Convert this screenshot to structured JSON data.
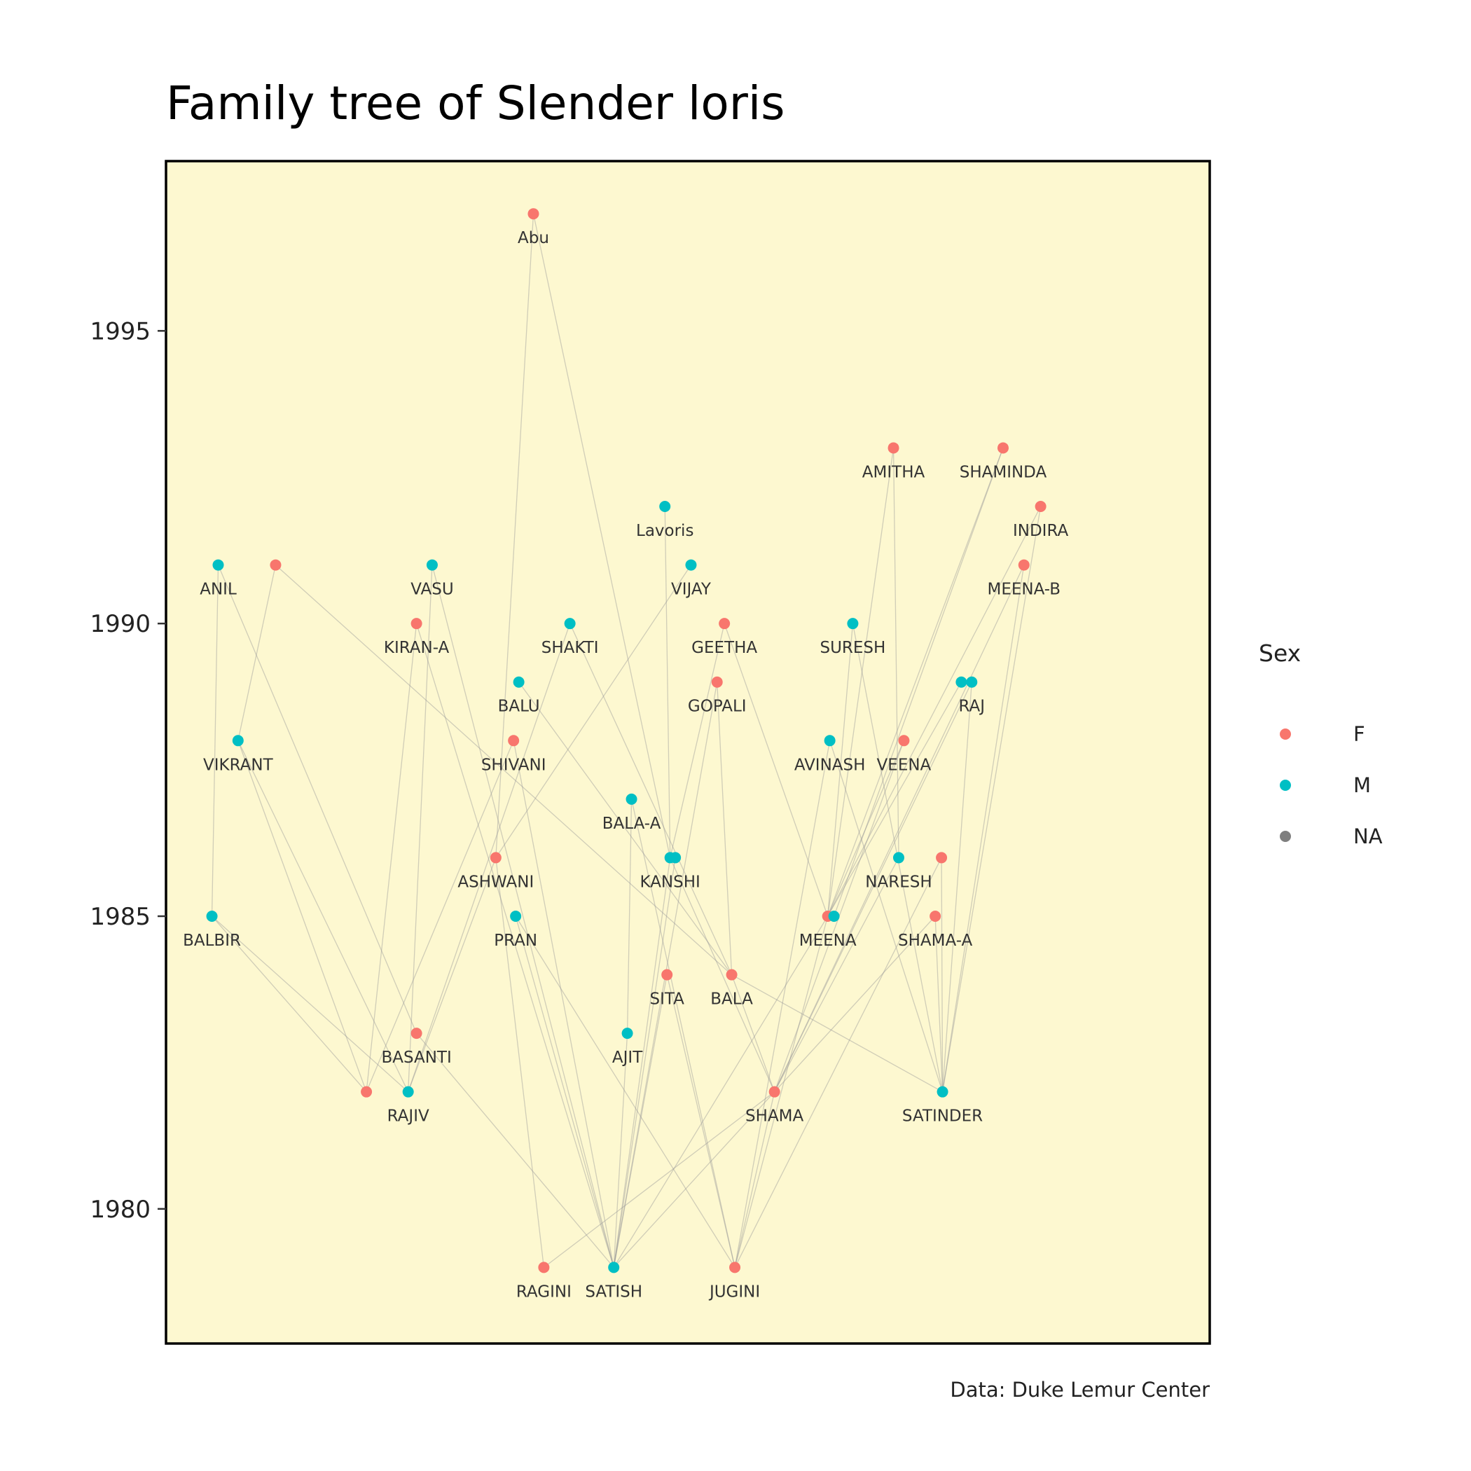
{
  "colors": {
    "panel_bg": "#fdf8d0",
    "panel_border": "#000000",
    "female": "#f8766d",
    "male": "#00bfc4",
    "na": "#7f7f7f",
    "edge": "#9a9a9a"
  },
  "chart_data": {
    "type": "scatter",
    "title": "Family tree of Slender loris",
    "caption": "Data: Duke Lemur Center",
    "xlabel": "",
    "ylabel": "",
    "xlim": [
      0,
      100
    ],
    "ylim": [
      1977.7,
      1997.9
    ],
    "y_ticks": [
      1980,
      1985,
      1990,
      1995
    ],
    "grid": false,
    "legend": {
      "title": "Sex",
      "placement": "right",
      "entries": [
        {
          "label": "F",
          "color": "#f8766d"
        },
        {
          "label": "M",
          "color": "#00bfc4"
        },
        {
          "label": "NA",
          "color": "#7f7f7f"
        }
      ]
    },
    "nodes": [
      {
        "id": "abu",
        "label": "Abu",
        "sex": "F",
        "x": 35.2,
        "y": 1997
      },
      {
        "id": "amitha",
        "label": "AMITHA",
        "sex": "F",
        "x": 69.7,
        "y": 1993
      },
      {
        "id": "shaminda",
        "label": "SHAMINDA",
        "sex": "F",
        "x": 80.2,
        "y": 1993
      },
      {
        "id": "lavoris",
        "label": "Lavoris",
        "sex": "M",
        "x": 47.8,
        "y": 1992
      },
      {
        "id": "indira",
        "label": "INDIRA",
        "sex": "F",
        "x": 83.8,
        "y": 1992
      },
      {
        "id": "anil",
        "label": "ANIL",
        "sex": "M",
        "x": 5.0,
        "y": 1991
      },
      {
        "id": "f1991a",
        "label": "",
        "sex": "F",
        "x": 10.5,
        "y": 1991
      },
      {
        "id": "vasu",
        "label": "VASU",
        "sex": "M",
        "x": 25.5,
        "y": 1991
      },
      {
        "id": "vijay",
        "label": "VIJAY",
        "sex": "M",
        "x": 50.3,
        "y": 1991
      },
      {
        "id": "meenab",
        "label": "MEENA-B",
        "sex": "F",
        "x": 82.2,
        "y": 1991
      },
      {
        "id": "kirana",
        "label": "KIRAN-A",
        "sex": "F",
        "x": 24.0,
        "y": 1990
      },
      {
        "id": "shakti",
        "label": "SHAKTI",
        "sex": "M",
        "x": 38.7,
        "y": 1990
      },
      {
        "id": "geetha",
        "label": "GEETHA",
        "sex": "F",
        "x": 53.5,
        "y": 1990
      },
      {
        "id": "suresh",
        "label": "SURESH",
        "sex": "M",
        "x": 65.8,
        "y": 1990
      },
      {
        "id": "balu",
        "label": "BALU",
        "sex": "M",
        "x": 33.8,
        "y": 1989
      },
      {
        "id": "gopali",
        "label": "GOPALI",
        "sex": "F",
        "x": 52.8,
        "y": 1989
      },
      {
        "id": "raj",
        "label": "RAJ",
        "sex": "M",
        "x": 77.2,
        "y": 1989
      },
      {
        "id": "m1989b",
        "label": "",
        "sex": "M",
        "x": 76.2,
        "y": 1989
      },
      {
        "id": "vikrant",
        "label": "VIKRANT",
        "sex": "M",
        "x": 6.9,
        "y": 1988
      },
      {
        "id": "shivani",
        "label": "SHIVANI",
        "sex": "F",
        "x": 33.3,
        "y": 1988
      },
      {
        "id": "avinash",
        "label": "AVINASH",
        "sex": "M",
        "x": 63.6,
        "y": 1988
      },
      {
        "id": "veena",
        "label": "VEENA",
        "sex": "F",
        "x": 70.7,
        "y": 1988
      },
      {
        "id": "balaa",
        "label": "BALA-A",
        "sex": "M",
        "x": 44.6,
        "y": 1987
      },
      {
        "id": "ashwani",
        "label": "ASHWANI",
        "sex": "F",
        "x": 31.6,
        "y": 1986
      },
      {
        "id": "kanshi",
        "label": "KANSHI",
        "sex": "M",
        "x": 48.3,
        "y": 1986
      },
      {
        "id": "m1986b",
        "label": "",
        "sex": "M",
        "x": 48.8,
        "y": 1986
      },
      {
        "id": "naresh",
        "label": "NARESH",
        "sex": "M",
        "x": 70.2,
        "y": 1986
      },
      {
        "id": "f1986b",
        "label": "",
        "sex": "F",
        "x": 74.3,
        "y": 1986
      },
      {
        "id": "balbir",
        "label": "BALBIR",
        "sex": "M",
        "x": 4.4,
        "y": 1985
      },
      {
        "id": "pran",
        "label": "PRAN",
        "sex": "M",
        "x": 33.5,
        "y": 1985
      },
      {
        "id": "meena",
        "label": "MEENA",
        "sex": "F",
        "x": 63.4,
        "y": 1985
      },
      {
        "id": "m1985b",
        "label": "",
        "sex": "M",
        "x": 64.0,
        "y": 1985
      },
      {
        "id": "shamaa",
        "label": "SHAMA-A",
        "sex": "F",
        "x": 73.7,
        "y": 1985
      },
      {
        "id": "sita",
        "label": "SITA",
        "sex": "F",
        "x": 48.0,
        "y": 1984
      },
      {
        "id": "bala",
        "label": "BALA",
        "sex": "F",
        "x": 54.2,
        "y": 1984
      },
      {
        "id": "basanti",
        "label": "BASANTI",
        "sex": "F",
        "x": 24.0,
        "y": 1983
      },
      {
        "id": "ajit",
        "label": "AJIT",
        "sex": "M",
        "x": 44.2,
        "y": 1983
      },
      {
        "id": "f1982a",
        "label": "",
        "sex": "F",
        "x": 19.2,
        "y": 1982
      },
      {
        "id": "rajiv",
        "label": "RAJIV",
        "sex": "M",
        "x": 23.2,
        "y": 1982
      },
      {
        "id": "shama",
        "label": "SHAMA",
        "sex": "F",
        "x": 58.3,
        "y": 1982
      },
      {
        "id": "satinder",
        "label": "SATINDER",
        "sex": "M",
        "x": 74.4,
        "y": 1982
      },
      {
        "id": "ragini",
        "label": "RAGINI",
        "sex": "F",
        "x": 36.2,
        "y": 1979
      },
      {
        "id": "satish",
        "label": "SATISH",
        "sex": "M",
        "x": 42.9,
        "y": 1979
      },
      {
        "id": "jugini",
        "label": "JUGINI",
        "sex": "F",
        "x": 54.5,
        "y": 1979
      }
    ],
    "edges": [
      [
        "abu",
        "ashwani"
      ],
      [
        "abu",
        "kanshi"
      ],
      [
        "amitha",
        "meena"
      ],
      [
        "amitha",
        "naresh"
      ],
      [
        "shaminda",
        "meena"
      ],
      [
        "shaminda",
        "m1985b"
      ],
      [
        "indira",
        "meena"
      ],
      [
        "indira",
        "satinder"
      ],
      [
        "lavoris",
        "kanshi"
      ],
      [
        "vijay",
        "ashwani"
      ],
      [
        "meenab",
        "shama"
      ],
      [
        "meenab",
        "satinder"
      ],
      [
        "anil",
        "balbir"
      ],
      [
        "anil",
        "basanti"
      ],
      [
        "f1991a",
        "vikrant"
      ],
      [
        "f1991a",
        "bala"
      ],
      [
        "vasu",
        "rajiv"
      ],
      [
        "vasu",
        "satish"
      ],
      [
        "kirana",
        "f1982a"
      ],
      [
        "kirana",
        "satish"
      ],
      [
        "shakti",
        "rajiv"
      ],
      [
        "shakti",
        "bala"
      ],
      [
        "geetha",
        "kanshi"
      ],
      [
        "geetha",
        "meena"
      ],
      [
        "suresh",
        "meena"
      ],
      [
        "suresh",
        "satinder"
      ],
      [
        "balu",
        "bala"
      ],
      [
        "gopali",
        "bala"
      ],
      [
        "gopali",
        "satish"
      ],
      [
        "raj",
        "satinder"
      ],
      [
        "raj",
        "shama"
      ],
      [
        "m1989b",
        "meena"
      ],
      [
        "vikrant",
        "f1982a"
      ],
      [
        "vikrant",
        "rajiv"
      ],
      [
        "shivani",
        "f1982a"
      ],
      [
        "shivani",
        "satish"
      ],
      [
        "avinash",
        "satinder"
      ],
      [
        "avinash",
        "jugini"
      ],
      [
        "veena",
        "shama"
      ],
      [
        "veena",
        "meena"
      ],
      [
        "balaa",
        "ajit"
      ],
      [
        "balaa",
        "jugini"
      ],
      [
        "ashwani",
        "rajiv"
      ],
      [
        "ashwani",
        "ragini"
      ],
      [
        "kanshi",
        "satish"
      ],
      [
        "kanshi",
        "shama"
      ],
      [
        "m1986b",
        "satish"
      ],
      [
        "naresh",
        "shama"
      ],
      [
        "f1986b",
        "satinder"
      ],
      [
        "f1986b",
        "jugini"
      ],
      [
        "balbir",
        "f1982a"
      ],
      [
        "balbir",
        "rajiv"
      ],
      [
        "pran",
        "satish"
      ],
      [
        "pran",
        "jugini"
      ],
      [
        "meena",
        "jugini"
      ],
      [
        "meena",
        "satish"
      ],
      [
        "shamaa",
        "satinder"
      ],
      [
        "shamaa",
        "satish"
      ],
      [
        "sita",
        "satish"
      ],
      [
        "sita",
        "jugini"
      ],
      [
        "bala",
        "satinder"
      ],
      [
        "bala",
        "shama"
      ],
      [
        "basanti",
        "satish"
      ],
      [
        "ajit",
        "satish"
      ],
      [
        "shama",
        "ragini"
      ],
      [
        "shama",
        "jugini"
      ]
    ]
  }
}
